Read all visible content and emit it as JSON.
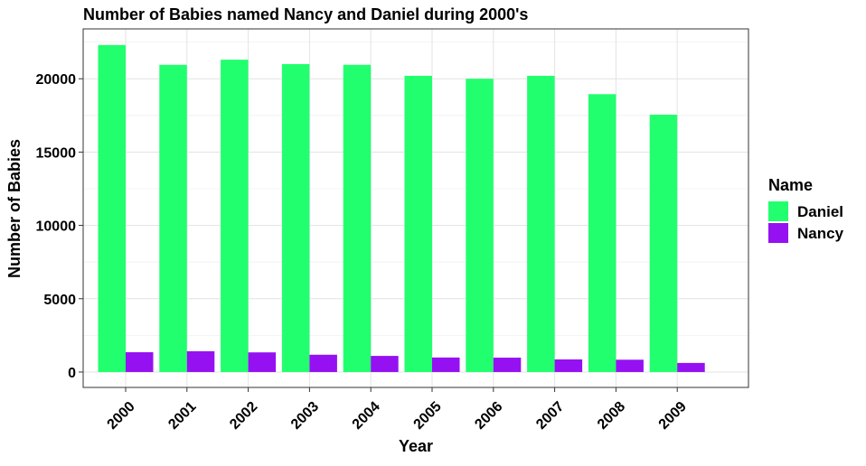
{
  "chart_data": {
    "type": "bar",
    "title": "Number of Babies named Nancy and Daniel during 2000's",
    "xlabel": "Year",
    "ylabel": "Number of Babies",
    "categories": [
      "2000",
      "2001",
      "2002",
      "2003",
      "2004",
      "2005",
      "2006",
      "2007",
      "2008",
      "2009"
    ],
    "series": [
      {
        "name": "Daniel",
        "color": "#22FF6E",
        "values": [
          22300,
          20950,
          21300,
          21000,
          20950,
          20200,
          20000,
          20200,
          18950,
          17550
        ]
      },
      {
        "name": "Nancy",
        "color": "#9511F2",
        "values": [
          1350,
          1420,
          1340,
          1180,
          1100,
          990,
          980,
          860,
          840,
          620
        ]
      }
    ],
    "yticks": [
      0,
      5000,
      10000,
      15000,
      20000
    ],
    "ylim": [
      -1050,
      23400
    ],
    "grid": true,
    "legend": {
      "title": "Name",
      "position": "right"
    }
  }
}
